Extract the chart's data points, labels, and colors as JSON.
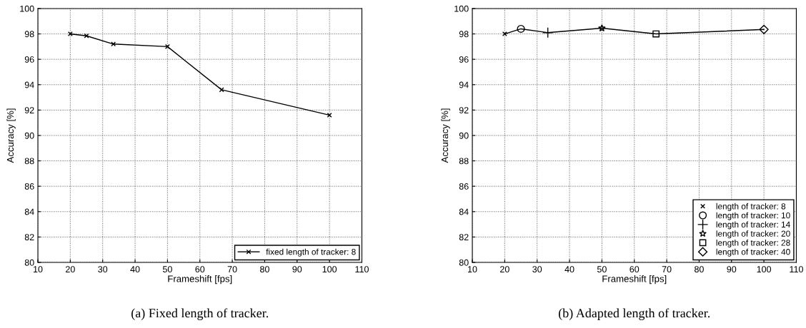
{
  "chart_data": [
    {
      "type": "line",
      "title": "(a) Fixed length of tracker.",
      "xlabel": "Frameshift [fps]",
      "ylabel": "Accuracy [%]",
      "x": [
        20,
        25,
        33.3,
        50,
        66.7,
        100
      ],
      "series": [
        {
          "name": "fixed length of tracker: 8",
          "color": "#000000",
          "values": [
            98.0,
            97.85,
            97.2,
            97.0,
            93.6,
            91.6
          ],
          "marker": "cross"
        }
      ],
      "xlim": [
        10,
        110
      ],
      "xticks": [
        10,
        20,
        30,
        40,
        50,
        60,
        70,
        80,
        90,
        100,
        110
      ],
      "ylim": [
        80,
        100
      ],
      "yticks": [
        80,
        82,
        84,
        86,
        88,
        90,
        92,
        94,
        96,
        98,
        100
      ],
      "grid": true,
      "legend": "bottom right"
    },
    {
      "type": "line",
      "title": "(b) Adapted length of tracker.",
      "xlabel": "Frameshift [fps]",
      "ylabel": "Accuracy [%]",
      "x": [
        20,
        25,
        33.3,
        50,
        66.7,
        100
      ],
      "series": [
        {
          "color": "#000000",
          "values": [
            98.0,
            98.4,
            98.1,
            98.45,
            98.0,
            98.35
          ],
          "marker": "none"
        },
        {
          "type": "scatter",
          "name": "length of tracker: 8",
          "color": "#000000",
          "x": [
            20
          ],
          "values": [
            98.0
          ],
          "marker": "cross"
        },
        {
          "type": "scatter",
          "name": "length of tracker: 10",
          "color": "#000000",
          "x": [
            25
          ],
          "values": [
            98.4
          ],
          "marker": "circle"
        },
        {
          "type": "scatter",
          "name": "length of tracker: 14",
          "color": "#000000",
          "x": [
            33.3
          ],
          "values": [
            98.1
          ],
          "marker": "plus"
        },
        {
          "type": "scatter",
          "name": "length of tracker: 20",
          "color": "#000000",
          "x": [
            50
          ],
          "values": [
            98.45
          ],
          "marker": "star"
        },
        {
          "type": "scatter",
          "name": "length of tracker: 28",
          "color": "#000000",
          "x": [
            66.7
          ],
          "values": [
            98.0
          ],
          "marker": "square"
        },
        {
          "type": "scatter",
          "name": "length of tracker: 40",
          "color": "#000000",
          "x": [
            100
          ],
          "values": [
            98.35
          ],
          "marker": "diamond"
        }
      ],
      "xlim": [
        10,
        110
      ],
      "xticks": [
        10,
        20,
        30,
        40,
        50,
        60,
        70,
        80,
        90,
        100,
        110
      ],
      "ylim": [
        80,
        100
      ],
      "yticks": [
        80,
        82,
        84,
        86,
        88,
        90,
        92,
        94,
        96,
        98,
        100
      ],
      "grid": true,
      "legend": "bottom right"
    }
  ]
}
